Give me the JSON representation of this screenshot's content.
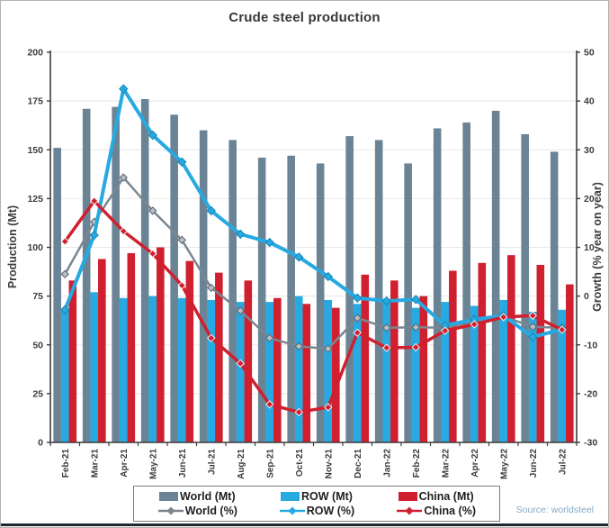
{
  "header": {
    "title": "Crude steel production"
  },
  "source": {
    "label": "Source: worldsteel"
  },
  "legend": {
    "items": [
      {
        "label": "World (Mt)",
        "swatch": "bar",
        "color_key": "world_bar"
      },
      {
        "label": "ROW (Mt)",
        "swatch": "bar",
        "color_key": "row_bar"
      },
      {
        "label": "China (Mt)",
        "swatch": "bar",
        "color_key": "china_bar"
      },
      {
        "label": "World (%)",
        "swatch": "line",
        "color_key": "world_line"
      },
      {
        "label": "ROW (%)",
        "swatch": "line",
        "color_key": "row_line"
      },
      {
        "label": "China (%)",
        "swatch": "line",
        "color_key": "china_line"
      }
    ]
  },
  "colors": {
    "world_bar": "#6b8495",
    "row_bar": "#27a9e1",
    "china_bar": "#d01f2f",
    "world_line": "#7b8690",
    "row_line": "#27a9e1",
    "china_line": "#d0202f",
    "world_marker_fill": "#b6bec6",
    "world_marker_stroke": "#59636d",
    "row_marker_stroke": "#1787b8",
    "china_marker_stroke": "#f2f2f2",
    "axis": "#3c3c3c",
    "grid": "#e7e7e7",
    "title_text": "#383838",
    "source_text": "#87abc7"
  },
  "chart_data": {
    "type": "bar+line combo",
    "title": "Crude steel production",
    "grid": "faint horizontal gridlines",
    "legend_position": "bottom",
    "categories": [
      "Feb-21",
      "Mar-21",
      "Apr-21",
      "May-21",
      "Jun-21",
      "Jul-21",
      "Aug-21",
      "Sep-21",
      "Oct-21",
      "Nov-21",
      "Dec-21",
      "Jan-22",
      "Feb-22",
      "Mar-22",
      "Apr-22",
      "May-22",
      "Jun-22",
      "Jul-22"
    ],
    "left_axis": {
      "label": "Production (Mt)",
      "lim": [
        0,
        200
      ],
      "ticks": [
        0,
        25,
        50,
        75,
        100,
        125,
        150,
        175,
        200
      ]
    },
    "right_axis": {
      "label": "Growth (% year on year)",
      "lim": [
        -30,
        50
      ],
      "ticks": [
        -30,
        -20,
        -10,
        0,
        10,
        20,
        30,
        40,
        50
      ]
    },
    "series": [
      {
        "name": "World (Mt)",
        "type": "bar",
        "axis": "left",
        "color_key": "world_bar",
        "values": [
          151,
          171,
          172,
          176,
          168,
          160,
          155,
          146,
          147,
          143,
          157,
          155,
          143,
          161,
          164,
          170,
          158,
          149
        ]
      },
      {
        "name": "ROW (Mt)",
        "type": "bar",
        "axis": "left",
        "color_key": "row_bar",
        "values": [
          68,
          77,
          74,
          75,
          74,
          73,
          72,
          72,
          75,
          73,
          71,
          73,
          69,
          72,
          70,
          73,
          67,
          68
        ]
      },
      {
        "name": "China (Mt)",
        "type": "bar",
        "axis": "left",
        "color_key": "china_bar",
        "values": [
          83,
          94,
          97,
          100,
          93,
          87,
          83,
          74,
          71,
          69,
          86,
          83,
          75,
          88,
          92,
          96,
          91,
          81
        ]
      },
      {
        "name": "World (%)",
        "type": "line",
        "axis": "right",
        "color_key": "world_line",
        "values": [
          4.5,
          15.2,
          24.3,
          17.5,
          11.5,
          1.7,
          -3.0,
          -8.6,
          -10.3,
          -10.8,
          -4.5,
          -6.5,
          -6.4,
          -6.5,
          -5.2,
          -4.2,
          -6.3,
          -6.5
        ]
      },
      {
        "name": "ROW (%)",
        "type": "line",
        "axis": "right",
        "color_key": "row_line",
        "values": [
          -2.8,
          12.5,
          42.5,
          33,
          27.5,
          17.5,
          12.7,
          11,
          8,
          4,
          -0.4,
          -1.0,
          -0.7,
          -6.0,
          -4.8,
          -4.0,
          -8.4,
          -6.8
        ]
      },
      {
        "name": "China (%)",
        "type": "line",
        "axis": "right",
        "color_key": "china_line",
        "values": [
          11.2,
          19.5,
          13.3,
          8.7,
          2.2,
          -8.6,
          -13.8,
          -22.2,
          -23.8,
          -22.8,
          -7.5,
          -10.6,
          -10.5,
          -7.1,
          -5.8,
          -4.3,
          -4.0,
          -6.9
        ]
      }
    ]
  }
}
